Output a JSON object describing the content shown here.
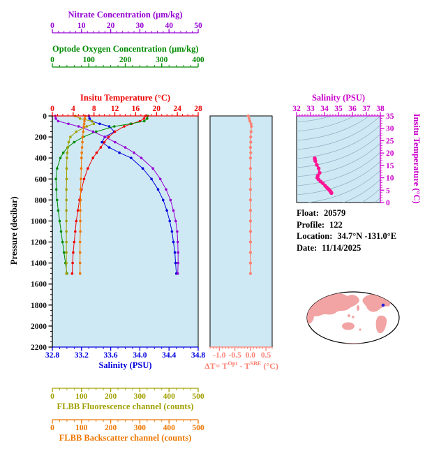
{
  "figure": {
    "bg": "#ffffff",
    "plot_bg": "#cfe9f4"
  },
  "texts": {
    "delta_title": {
      "p1": "ΔT= T",
      "sup1": "Opt",
      "p2": " - T",
      "sup2": "SBE",
      "p3": " (°C)"
    }
  },
  "info": {
    "rows": [
      {
        "label": "Float:",
        "value": "20579"
      },
      {
        "label": "Profile:",
        "value": "122"
      },
      {
        "label": "Location:",
        "value": "34.7°N -131.0°E"
      },
      {
        "label": "Date:",
        "value": "11/14/2025"
      }
    ]
  },
  "map": {
    "land_color": "#f2a3a3",
    "outline_color": "#000000",
    "marker": {
      "lat": 34.7,
      "lon": -131.0,
      "color": "#2222dd"
    }
  },
  "chart_data": [
    {
      "id": "profiles",
      "type": "line",
      "orientation": "vertical-profile",
      "ylabel": "Pressure (decibar)",
      "ylabel_color": "#000000",
      "ylim": [
        0,
        2200
      ],
      "yticks": [
        "0",
        "200",
        "400",
        "600",
        "800",
        "1000",
        "1200",
        "1400",
        "1600",
        "1800",
        "2000",
        "2200"
      ],
      "bg": "#cfe9f4",
      "x_axes": [
        {
          "id": "salinity",
          "title": "Salinity (PSU)",
          "color": "#0000dd",
          "lim": [
            32.8,
            34.8
          ],
          "ticks": [
            "32.8",
            "33.2",
            "33.6",
            "34.0",
            "34.4",
            "34.8"
          ],
          "position": "bottom"
        },
        {
          "id": "temperature",
          "title": "Insitu Temperature (°C)",
          "color": "#ee0000",
          "lim": [
            0,
            28
          ],
          "ticks": [
            "0",
            "4",
            "8",
            "12",
            "16",
            "20",
            "24",
            "28"
          ],
          "position": "top"
        },
        {
          "id": "oxygen",
          "title": "Optode Oxygen Concentration (μm/kg)",
          "color": "#008b00",
          "lim": [
            0,
            400
          ],
          "ticks": [
            "0",
            "100",
            "200",
            "300",
            "400"
          ],
          "position": "top"
        },
        {
          "id": "nitrate",
          "title": "Nitrate Concentration (μm/kg)",
          "color": "#9400d3",
          "lim": [
            0,
            50
          ],
          "ticks": [
            "0",
            "10",
            "20",
            "30",
            "40",
            "50"
          ],
          "position": "top"
        },
        {
          "id": "fluorescence",
          "title": "FLBB Fluorescence channel (counts)",
          "color": "#a0a000",
          "lim": [
            0,
            500
          ],
          "ticks": [
            "0",
            "100",
            "200",
            "300",
            "400",
            "500"
          ],
          "position": "bottom"
        },
        {
          "id": "backscatter",
          "title": "FLBB Backscatter channel (counts)",
          "color": "#ee7600",
          "lim": [
            0,
            500
          ],
          "ticks": [
            "0",
            "100",
            "200",
            "300",
            "400",
            "500"
          ],
          "position": "bottom"
        }
      ],
      "pressure_db": [
        0,
        25,
        50,
        75,
        100,
        150,
        200,
        250,
        300,
        350,
        400,
        500,
        600,
        700,
        800,
        900,
        1000,
        1100,
        1200,
        1300,
        1400,
        1500
      ],
      "series": [
        {
          "axis": "salinity",
          "name": "Salinity (PSU)",
          "color": "#0000dd",
          "values": [
            33.3,
            33.31,
            33.34,
            33.45,
            33.58,
            33.65,
            33.52,
            33.48,
            33.58,
            33.72,
            33.88,
            34.04,
            34.16,
            34.25,
            34.32,
            34.37,
            34.41,
            34.44,
            34.46,
            34.48,
            34.49,
            34.5
          ]
        },
        {
          "axis": "temperature",
          "name": "Insitu Temperature (°C)",
          "color": "#ee0000",
          "values": [
            17.9,
            17.6,
            16.8,
            15.2,
            13.8,
            12.0,
            10.8,
            10.0,
            9.3,
            8.5,
            7.8,
            6.8,
            6.1,
            5.6,
            5.2,
            4.9,
            4.6,
            4.4,
            4.2,
            4.0,
            3.9,
            3.8
          ]
        },
        {
          "axis": "oxygen",
          "name": "Optode Oxygen Concentration (μm/kg)",
          "color": "#008b00",
          "values": [
            262,
            260,
            252,
            215,
            170,
            120,
            85,
            60,
            42,
            30,
            22,
            13,
            10,
            11,
            13,
            16,
            20,
            24,
            28,
            32,
            36,
            40
          ]
        },
        {
          "axis": "nitrate",
          "name": "Nitrate Concentration (μm/kg)",
          "color": "#9400d3",
          "values": [
            1.0,
            1.2,
            2.0,
            5.5,
            9.0,
            14.0,
            18.0,
            21.5,
            25.0,
            28.0,
            30.5,
            34.5,
            37.0,
            39.0,
            40.5,
            41.5,
            42.3,
            42.8,
            43.0,
            43.1,
            43.1,
            43.0
          ]
        },
        {
          "axis": "fluorescence",
          "name": "FLBB Fluorescence channel (counts)",
          "color": "#a0a000",
          "values": [
            78,
            95,
            135,
            142,
            118,
            82,
            62,
            56,
            53,
            51,
            50,
            49,
            49,
            48,
            48,
            48,
            48,
            48,
            48,
            48,
            48,
            48
          ]
        },
        {
          "axis": "backscatter",
          "name": "FLBB Backscatter channel (counts)",
          "color": "#ee7600",
          "values": [
            113,
            111,
            110,
            109,
            108,
            106,
            104,
            103,
            102,
            101,
            100,
            99,
            98,
            97,
            97,
            96,
            96,
            96,
            95,
            95,
            95,
            95
          ]
        }
      ]
    },
    {
      "id": "delta_t",
      "type": "line",
      "xlabel": "ΔT= T^Opt - T^SBE (°C)",
      "color": "#fa8072",
      "bg": "#cfe9f4",
      "xlim": [
        -1.3,
        0.7
      ],
      "xticks": [
        "-1.0",
        "-0.5",
        "0.0",
        "0.5"
      ],
      "pressure_db": [
        0,
        25,
        50,
        75,
        100,
        150,
        200,
        250,
        300,
        350,
        400,
        500,
        600,
        700,
        800,
        900,
        1000,
        1100,
        1200,
        1300,
        1400,
        1500
      ],
      "values": [
        -0.07,
        -0.04,
        -0.02,
        0.02,
        0.03,
        0.02,
        0.01,
        0.01,
        0.0,
        0.01,
        0.0,
        0.0,
        0.0,
        0.0,
        0.0,
        0.0,
        0.0,
        0.0,
        0.0,
        0.0,
        0.0,
        0.0
      ]
    },
    {
      "id": "ts_diagram",
      "type": "scatter",
      "xlabel": "Salinity (PSU)",
      "ylabel": "Insitu Temperature (°C)",
      "label_color": "#cc00cc",
      "point_color": "#ff1493",
      "bg": "#cfe9f4",
      "contour_color": "#8fb0c2",
      "xlim": [
        32,
        38
      ],
      "xticks": [
        "32",
        "33",
        "34",
        "35",
        "36",
        "37",
        "38"
      ],
      "ylim": [
        0,
        35
      ],
      "yticks": [
        "0",
        "5",
        "10",
        "15",
        "20",
        "25",
        "30",
        "35"
      ],
      "points_source": "salinity vs temperature pairs from profiles chart"
    }
  ]
}
